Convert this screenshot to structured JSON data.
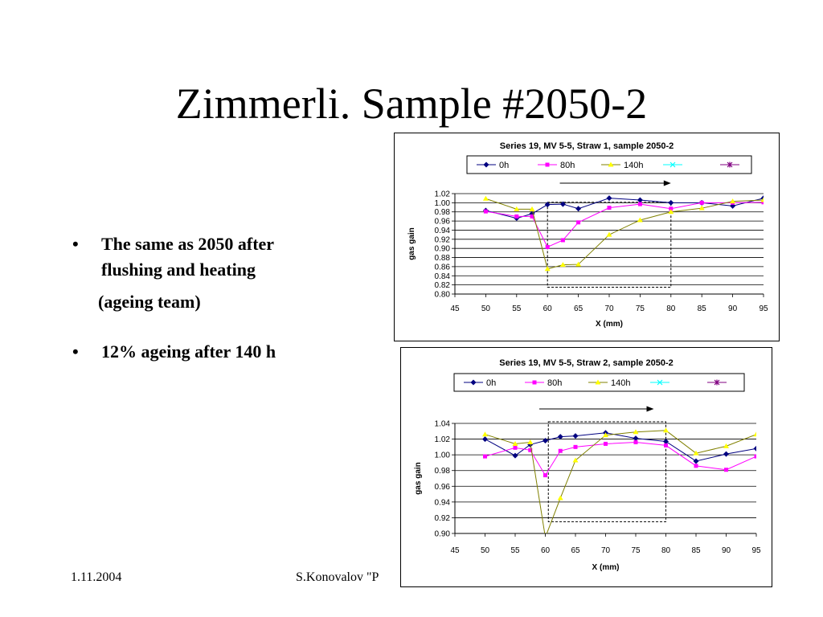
{
  "slide": {
    "title": "Zimmerli. Sample #2050-2",
    "bullets": [
      {
        "line1": "The same as 2050 after",
        "line2": "flushing and heating",
        "sub": "(ageing team)"
      },
      {
        "line1": "12% ageing after 140 h"
      }
    ],
    "footer_date": "1.11.2004",
    "footer_author": "S.Konovalov \"P"
  },
  "chart_data": [
    {
      "type": "line",
      "title": "Series 19, MV 5-5, Straw 1, sample 2050-2",
      "xlabel": "X (mm)",
      "ylabel": "gas gain",
      "xlim": [
        45,
        95
      ],
      "ylim": [
        0.8,
        1.02
      ],
      "xticks": [
        "45",
        "50",
        "55",
        "60",
        "65",
        "70",
        "75",
        "80",
        "85",
        "90",
        "95"
      ],
      "yticks": [
        "0.80",
        "0.82",
        "0.84",
        "0.86",
        "0.88",
        "0.90",
        "0.92",
        "0.94",
        "0.96",
        "0.98",
        "1.00",
        "1.02"
      ],
      "grid": true,
      "legend_position": "top",
      "series": [
        {
          "name": "0h",
          "color": "#000080",
          "marker": "diamond",
          "points": [
            [
              50,
              0.983
            ],
            [
              55,
              0.966
            ],
            [
              57.5,
              0.976
            ],
            [
              60,
              0.996
            ],
            [
              62.5,
              0.997
            ],
            [
              65,
              0.987
            ],
            [
              70,
              1.01
            ],
            [
              75,
              1.006
            ],
            [
              80,
              1.0
            ],
            [
              85,
              1.0
            ],
            [
              90,
              0.993
            ],
            [
              95,
              1.01
            ]
          ]
        },
        {
          "name": "80h",
          "color": "#ff00ff",
          "marker": "square",
          "points": [
            [
              50,
              0.981
            ],
            [
              55,
              0.97
            ],
            [
              57.5,
              0.97
            ],
            [
              60,
              0.903
            ],
            [
              62.5,
              0.918
            ],
            [
              65,
              0.957
            ],
            [
              70,
              0.989
            ],
            [
              75,
              0.997
            ],
            [
              80,
              0.987
            ],
            [
              85,
              1.0
            ],
            [
              90,
              1.0
            ],
            [
              95,
              1.001
            ]
          ]
        },
        {
          "name": "140h",
          "color": "#ffff00",
          "line_color": "#808000",
          "marker": "triangle",
          "points": [
            [
              50,
              1.009
            ],
            [
              55,
              0.986
            ],
            [
              57.5,
              0.986
            ],
            [
              60,
              0.855
            ],
            [
              62.5,
              0.864
            ],
            [
              65,
              0.865
            ],
            [
              70,
              0.93
            ],
            [
              75,
              0.962
            ],
            [
              80,
              0.98
            ],
            [
              85,
              0.988
            ],
            [
              90,
              1.003
            ],
            [
              95,
              1.006
            ]
          ]
        },
        {
          "name": "",
          "color": "#00ffff",
          "marker": "x",
          "points": []
        },
        {
          "name": "",
          "color": "#800080",
          "marker": "star",
          "points": []
        }
      ],
      "annotations": {
        "arrow_from_x": 62,
        "arrow_to_x": 80,
        "box_x": [
          60,
          80
        ],
        "box_y": [
          0.815,
          1.001
        ]
      }
    },
    {
      "type": "line",
      "title": "Series 19, MV 5-5, Straw 2, sample 2050-2",
      "xlabel": "X (mm)",
      "ylabel": "gas gain",
      "xlim": [
        45,
        95
      ],
      "ylim": [
        0.9,
        1.04
      ],
      "xticks": [
        "45",
        "50",
        "55",
        "60",
        "65",
        "70",
        "75",
        "80",
        "85",
        "90",
        "95"
      ],
      "yticks": [
        "0.90",
        "0.92",
        "0.94",
        "0.96",
        "0.98",
        "1.00",
        "1.02",
        "1.04"
      ],
      "grid": true,
      "legend_position": "top",
      "series": [
        {
          "name": "0h",
          "color": "#000080",
          "marker": "diamond",
          "points": [
            [
              50,
              1.02
            ],
            [
              55,
              0.999
            ],
            [
              57.5,
              1.013
            ],
            [
              60,
              1.018
            ],
            [
              62.5,
              1.023
            ],
            [
              65,
              1.024
            ],
            [
              70,
              1.028
            ],
            [
              75,
              1.021
            ],
            [
              80,
              1.017
            ],
            [
              85,
              0.992
            ],
            [
              90,
              1.001
            ],
            [
              95,
              1.008
            ]
          ]
        },
        {
          "name": "80h",
          "color": "#ff00ff",
          "marker": "square",
          "points": [
            [
              50,
              0.998
            ],
            [
              55,
              1.009
            ],
            [
              57.5,
              1.006
            ],
            [
              60,
              0.974
            ],
            [
              62.5,
              1.005
            ],
            [
              65,
              1.01
            ],
            [
              70,
              1.014
            ],
            [
              75,
              1.016
            ],
            [
              80,
              1.012
            ],
            [
              85,
              0.986
            ],
            [
              90,
              0.981
            ],
            [
              95,
              0.998
            ]
          ]
        },
        {
          "name": "140h",
          "color": "#ffff00",
          "line_color": "#808000",
          "marker": "triangle",
          "points": [
            [
              50,
              1.026
            ],
            [
              55,
              1.014
            ],
            [
              57.5,
              1.016
            ],
            [
              60,
              0.895
            ],
            [
              62.5,
              0.945
            ],
            [
              65,
              0.993
            ],
            [
              70,
              1.025
            ],
            [
              75,
              1.029
            ],
            [
              80,
              1.031
            ],
            [
              85,
              1.002
            ],
            [
              90,
              1.011
            ],
            [
              95,
              1.026
            ]
          ]
        },
        {
          "name": "",
          "color": "#00ffff",
          "marker": "x",
          "points": []
        },
        {
          "name": "",
          "color": "#800080",
          "marker": "star",
          "points": []
        }
      ],
      "annotations": {
        "arrow_from_x": 59,
        "arrow_to_x": 78,
        "box_x": [
          60.5,
          80
        ],
        "box_y": [
          0.915,
          1.042
        ]
      }
    }
  ]
}
